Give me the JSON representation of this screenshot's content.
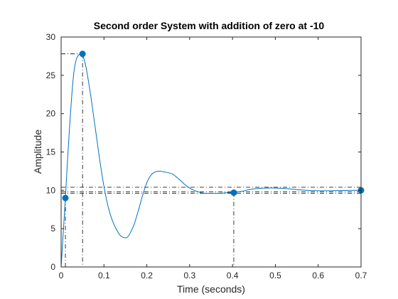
{
  "chart_data": {
    "type": "line",
    "title": "Second order System with addition of zero at -10",
    "xlabel": "Time (seconds)",
    "ylabel": "Amplitude",
    "xlim": [
      0,
      0.7
    ],
    "ylim": [
      0,
      30
    ],
    "xticks": [
      "0",
      "0.1",
      "0.2",
      "0.3",
      "0.4",
      "0.5",
      "0.6",
      "0.7"
    ],
    "yticks": [
      "0",
      "5",
      "10",
      "15",
      "20",
      "25",
      "30"
    ],
    "grid": false,
    "line_color": "#0072bd",
    "reference_line_color": "#000000",
    "series": [
      {
        "x": [
          0,
          0.005,
          0.01,
          0.015,
          0.02,
          0.025,
          0.03,
          0.035,
          0.04,
          0.045,
          0.05,
          0.055,
          0.06,
          0.07,
          0.08,
          0.09,
          0.1,
          0.11,
          0.12,
          0.13,
          0.14,
          0.15,
          0.155,
          0.16,
          0.17,
          0.18,
          0.19,
          0.2,
          0.21,
          0.22,
          0.23,
          0.24,
          0.25,
          0.26,
          0.27,
          0.28,
          0.29,
          0.3,
          0.31,
          0.32,
          0.33,
          0.34,
          0.35,
          0.36,
          0.37,
          0.38,
          0.39,
          0.4,
          0.42,
          0.44,
          0.46,
          0.48,
          0.5,
          0.52,
          0.54,
          0.56,
          0.58,
          0.6,
          0.62,
          0.64,
          0.66,
          0.68,
          0.7
        ],
        "y": [
          0,
          4.5,
          9.0,
          14.0,
          18.5,
          22.5,
          25.5,
          27.0,
          27.6,
          27.8,
          27.6,
          26.8,
          25.5,
          22.0,
          18.0,
          14.0,
          10.5,
          7.8,
          6.0,
          4.8,
          4.0,
          3.8,
          3.9,
          4.3,
          5.5,
          7.3,
          9.3,
          11.0,
          12.0,
          12.4,
          12.5,
          12.4,
          12.3,
          12.1,
          11.7,
          11.2,
          10.7,
          10.3,
          10.0,
          9.8,
          9.65,
          9.6,
          9.6,
          9.6,
          9.62,
          9.65,
          9.7,
          9.7,
          9.85,
          10.1,
          10.25,
          10.3,
          10.3,
          10.25,
          10.15,
          10.05,
          9.98,
          9.95,
          9.95,
          9.97,
          9.99,
          10.0,
          10.0
        ]
      }
    ],
    "markers": [
      {
        "x": 0.01,
        "y": 9.0
      },
      {
        "x": 0.05,
        "y": 27.8
      },
      {
        "x": 0.403,
        "y": 9.7
      },
      {
        "x": 0.7,
        "y": 10.0
      }
    ],
    "reference_lines": {
      "horizontal": [
        10.4,
        9.8,
        9.6
      ],
      "settling_time": 0.403,
      "peak_time": 0.05,
      "peak_value": 27.8,
      "rise_time": 0.01
    }
  }
}
